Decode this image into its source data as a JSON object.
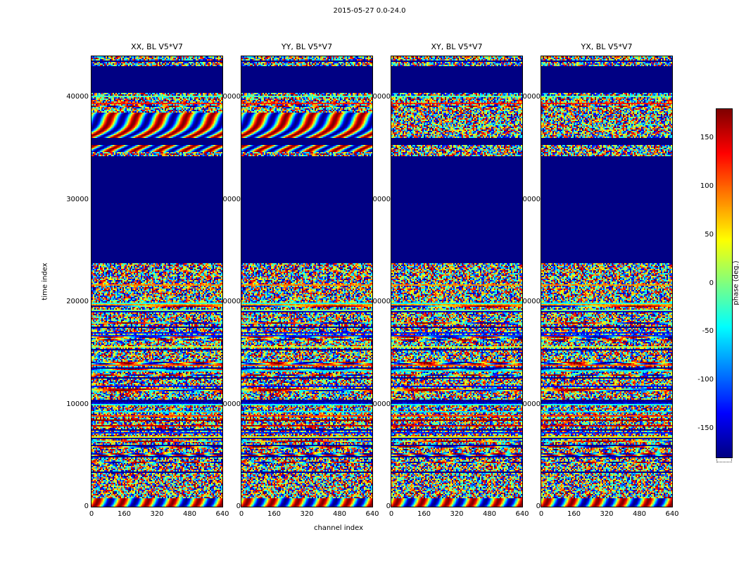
{
  "chart_data": {
    "type": "heatmap",
    "title": "2015-05-27 0.0-24.0",
    "xlabel": "channel index",
    "ylabel": "time index",
    "panels": [
      {
        "title": "XX, BL V5*V7",
        "polarization": "XX",
        "baseline": "V5*V7"
      },
      {
        "title": "YY, BL V5*V7",
        "polarization": "YY",
        "baseline": "V5*V7"
      },
      {
        "title": "XY, BL V5*V7",
        "polarization": "XY",
        "baseline": "V5*V7"
      },
      {
        "title": "YX, BL V5*V7",
        "polarization": "YX",
        "baseline": "V5*V7"
      }
    ],
    "xlim": [
      0,
      640
    ],
    "ylim": [
      0,
      44000
    ],
    "x_ticks": [
      0,
      160,
      320,
      480,
      640
    ],
    "y_ticks": [
      0,
      10000,
      20000,
      30000,
      40000
    ],
    "grid": false,
    "legend": null,
    "colorbar": {
      "label": "phase (deg.)",
      "ticks": [
        150,
        100,
        50,
        0,
        -50,
        -100,
        -150
      ],
      "clim": [
        -180,
        180
      ],
      "colormap": "jet"
    },
    "value_model": {
      "description": "Waterfall of visibility phase (deg.) versus channel index (x) and time index (y) for four polarizations of baseline V5*V7; speckled random jet-colored phase noise with horizontal stripe features; solid dark-blue bands are flagged/constant-phase regions.",
      "flagged_time_ranges": [
        [
          23720,
          34240
        ],
        [
          35270,
          35960
        ],
        [
          40490,
          42970
        ]
      ],
      "coherent_wave_time_ranges": [
        [
          34650,
          35270
        ],
        [
          35960,
          38500
        ]
      ],
      "coherent_wave_panels": [
        "XX",
        "YY"
      ],
      "coherent_wave_all_ranges": [
        [
          0,
          800
        ]
      ]
    }
  }
}
